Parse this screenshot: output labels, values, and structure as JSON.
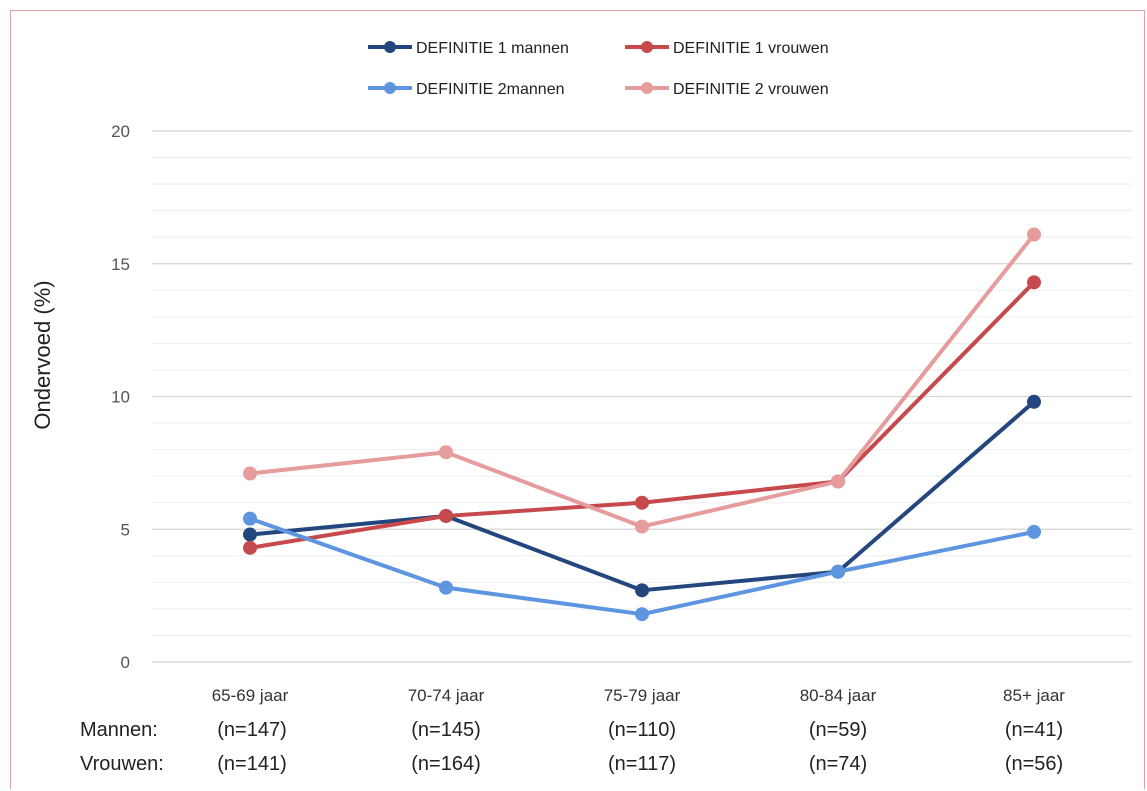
{
  "chart_data": {
    "type": "line",
    "categories": [
      "65-69 jaar",
      "70-74 jaar",
      "75-79 jaar",
      "80-84 jaar",
      "85+ jaar"
    ],
    "ylabel": "Ondervoed (%)",
    "xlabel": "",
    "ylim": [
      0,
      20
    ],
    "yticks": [
      "0",
      "5",
      "10",
      "15",
      "20"
    ],
    "grid": true,
    "legend_position": "top",
    "series": [
      {
        "name": "DEFINITIE 1 mannen",
        "color": "#23467f",
        "values": [
          4.8,
          5.5,
          2.7,
          3.4,
          9.8
        ]
      },
      {
        "name": "DEFINITIE 1 vrouwen",
        "color": "#c6494b",
        "values": [
          4.3,
          5.5,
          6.0,
          6.8,
          14.3
        ]
      },
      {
        "name": "DEFINITIE 2mannen",
        "color": "#5d95e0",
        "values": [
          5.4,
          2.8,
          1.8,
          3.4,
          4.9
        ]
      },
      {
        "name": "DEFINITIE 2 vrouwen",
        "color": "#e69c9d",
        "values": [
          7.1,
          7.9,
          5.1,
          6.8,
          16.1
        ]
      }
    ]
  },
  "sample_rows": [
    {
      "label": "Mannen:",
      "values": [
        "(n=147)",
        "(n=145)",
        "(n=110)",
        "(n=59)",
        "(n=41)"
      ]
    },
    {
      "label": "Vrouwen:",
      "values": [
        "(n=141)",
        "(n=164)",
        "(n=117)",
        "(n=74)",
        "(n=56)"
      ]
    }
  ]
}
